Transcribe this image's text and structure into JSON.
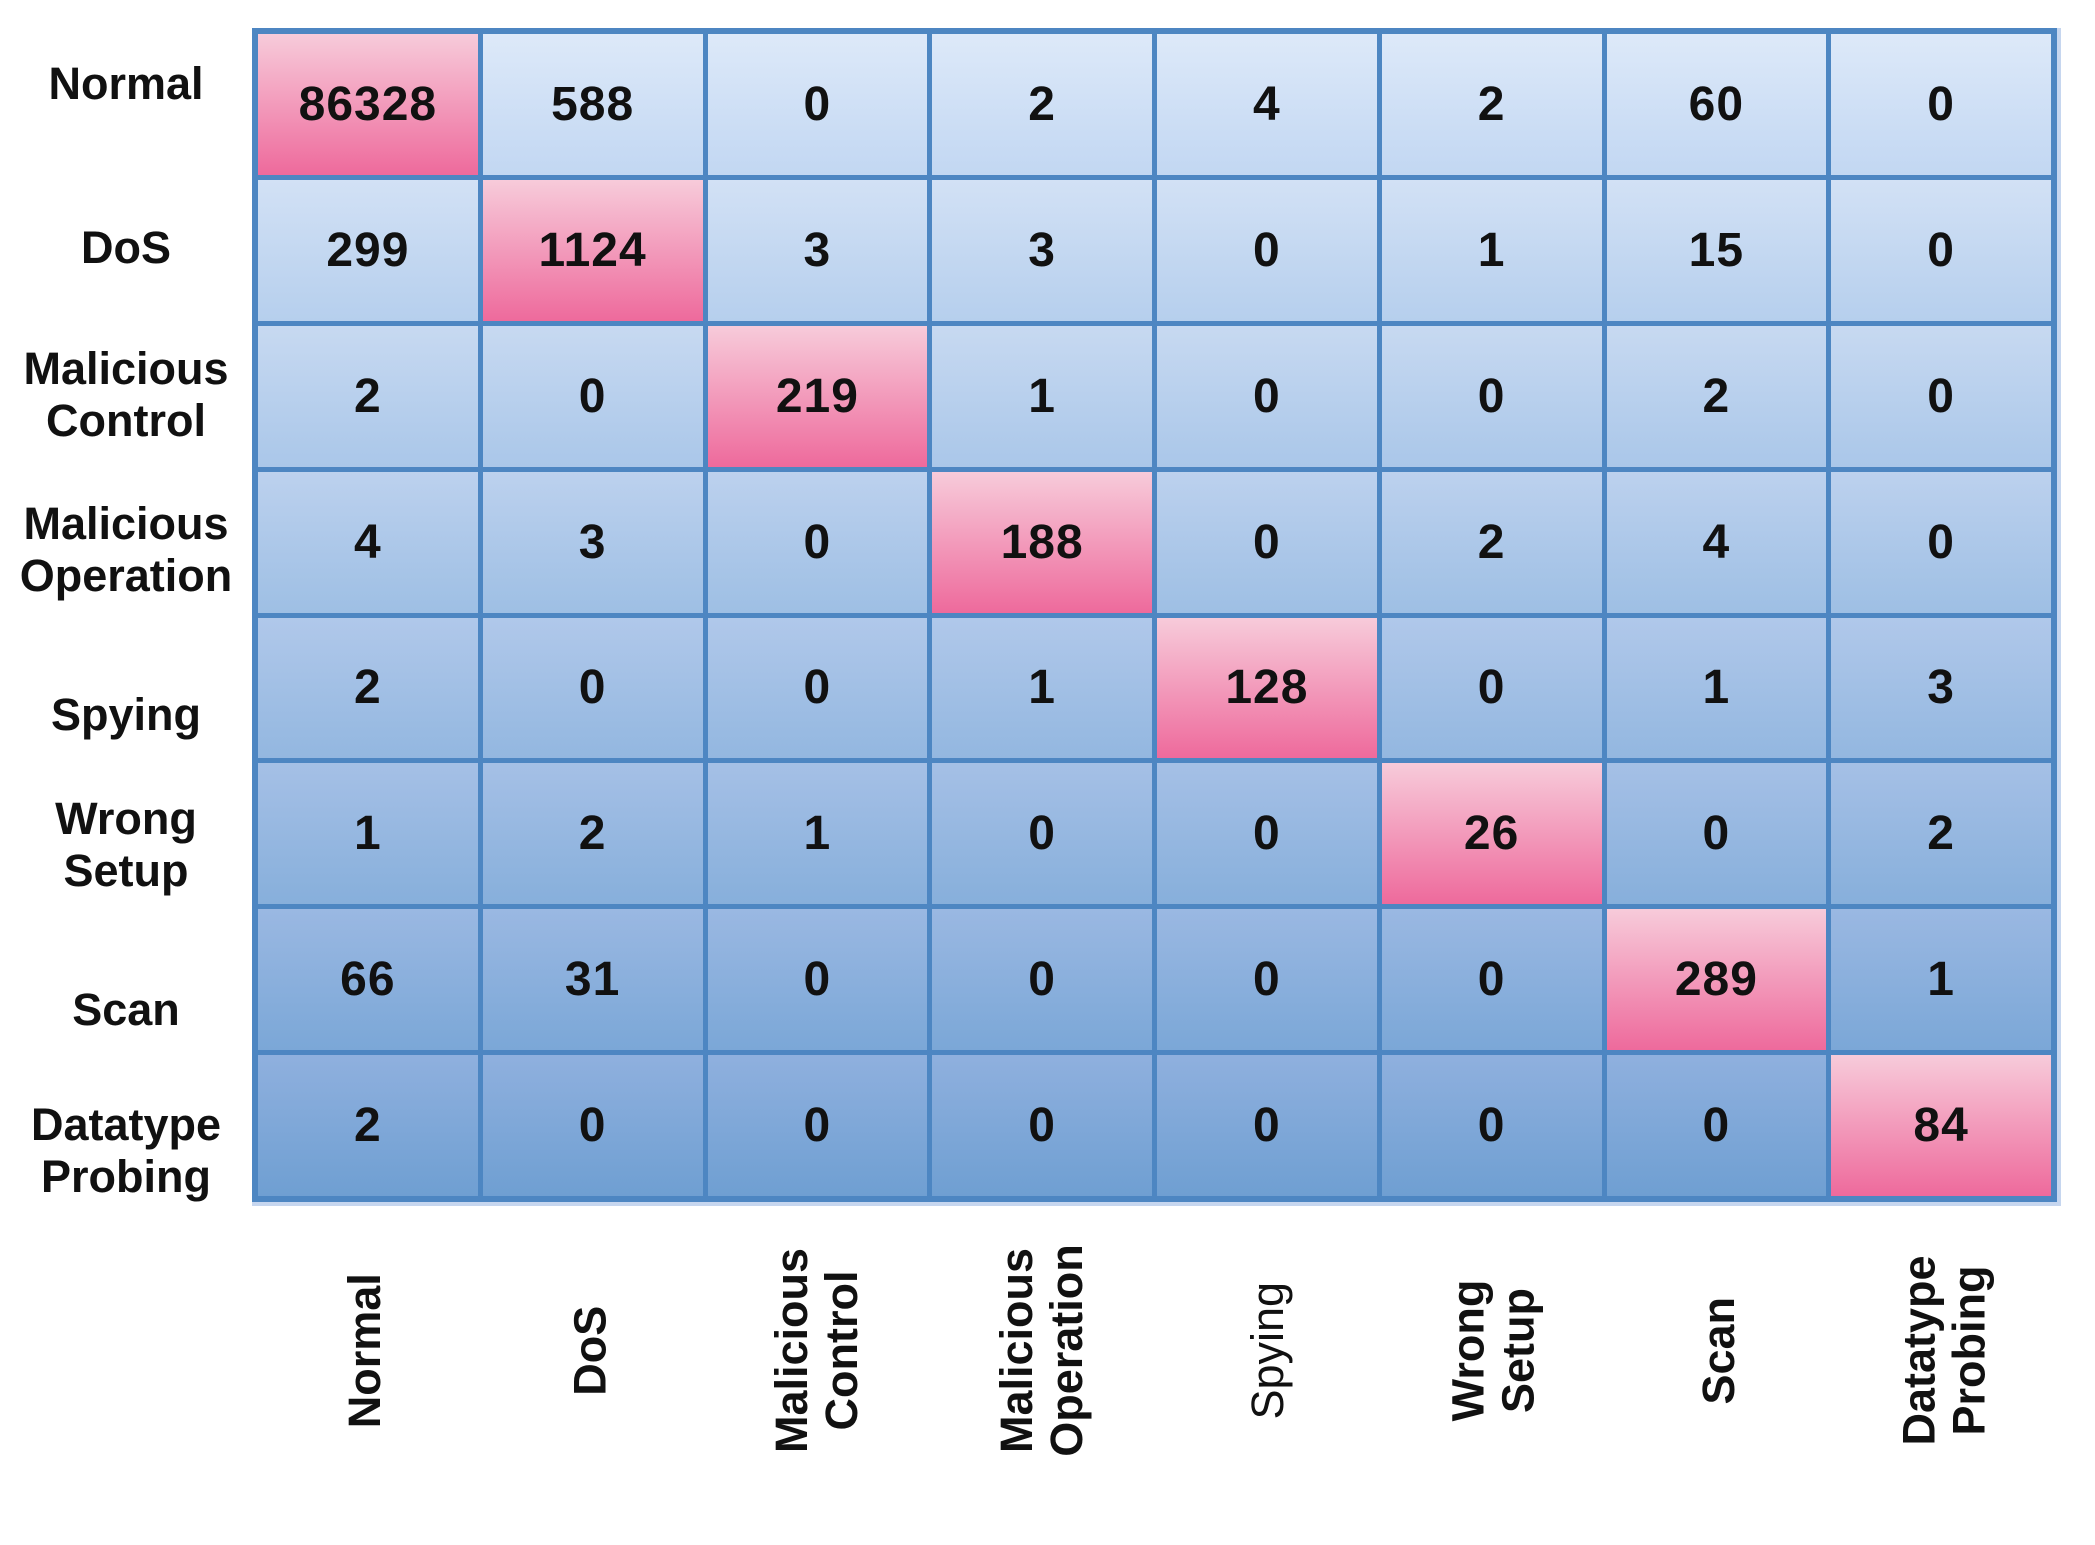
{
  "chart_data": {
    "type": "heatmap",
    "description": "Confusion matrix, 8 classes; rows are actual classes, columns are predicted classes; diagonal cells highlighted in pink",
    "legend_position": "none",
    "row_labels": [
      "Normal",
      "DoS",
      "Malicious\nControl",
      "Malicious\nOperation",
      "Spying",
      "Wrong\nSetup",
      "Scan",
      "Datatype\nProbing"
    ],
    "col_labels": [
      "Normal",
      "DoS",
      "Malicious\nControl",
      "Malicious\nOperation",
      "Spying",
      "Wrong\nSetup",
      "Scan",
      "Datatype\nProbing"
    ],
    "matrix": [
      [
        86328,
        588,
        0,
        2,
        4,
        2,
        60,
        0
      ],
      [
        299,
        1124,
        3,
        3,
        0,
        1,
        15,
        0
      ],
      [
        2,
        0,
        219,
        1,
        0,
        0,
        2,
        0
      ],
      [
        4,
        3,
        0,
        188,
        0,
        2,
        4,
        0
      ],
      [
        2,
        0,
        0,
        1,
        128,
        0,
        1,
        3
      ],
      [
        1,
        2,
        1,
        0,
        0,
        26,
        0,
        2
      ],
      [
        66,
        31,
        0,
        0,
        0,
        0,
        289,
        1
      ],
      [
        2,
        0,
        0,
        0,
        0,
        0,
        0,
        84
      ]
    ],
    "diagonal_values": [
      86328,
      1124,
      219,
      188,
      128,
      26,
      289,
      84
    ],
    "colors": {
      "diagonal_gradient_top": "#f7cbda",
      "diagonal_gradient_bottom": "#ee6a9c",
      "row_gradients": [
        [
          "#dde9f9",
          "#c2d7f2"
        ],
        [
          "#d2e1f5",
          "#b6cfed"
        ],
        [
          "#c7d9f1",
          "#aac7e9"
        ],
        [
          "#bcd1ee",
          "#9ebfe4"
        ],
        [
          "#b0c8ea",
          "#93b7e0"
        ],
        [
          "#a5c0e6",
          "#87afdb"
        ],
        [
          "#9ab8e2",
          "#7ba7d7"
        ],
        [
          "#8fb0de",
          "#6f9fd2"
        ]
      ],
      "grid_line": "#4d86c2",
      "outer_halo": "#c6d6ef",
      "value_text": "#111111",
      "background": "#ffffff"
    }
  }
}
